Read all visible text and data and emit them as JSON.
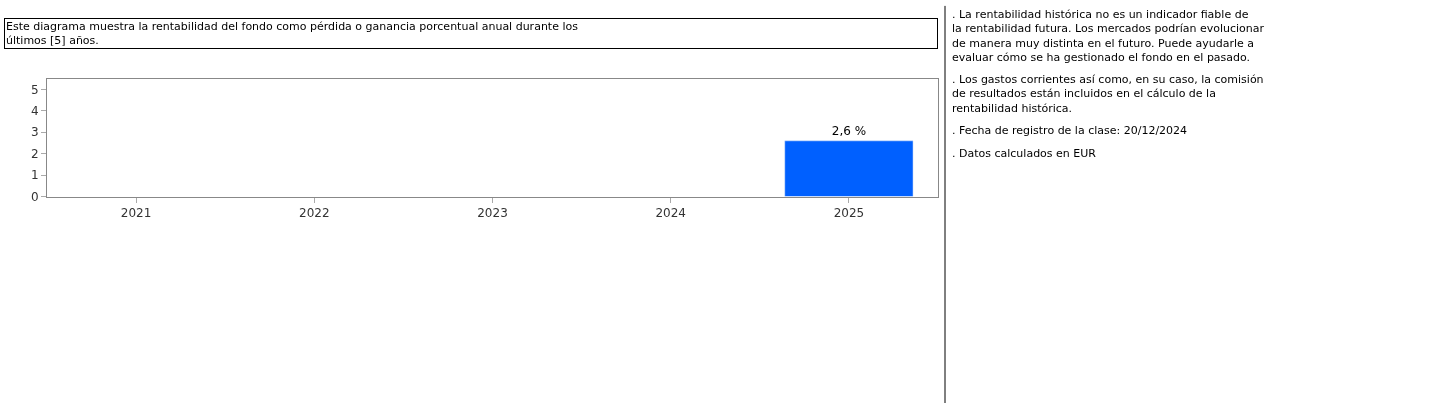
{
  "chart_data": {
    "type": "bar",
    "title": "Este diagrama muestra la rentabilidad del fondo como pérdida o ganancia porcentual anual durante los últimos [5] años.",
    "annotations": [
      ". La rentabilidad histórica no es un indicador fiable de la rentabilidad futura. Los mercados podrían evolucionar de manera muy distinta en el futuro. Puede ayudarle a evaluar cómo se ha gestionado el fondo en el pasado.",
      ". Los gastos corrientes así como, en su caso, la comisión de resultados están incluidos en el cálculo de la rentabilidad histórica.",
      ". Fecha de registro de la clase: 20/12/2024",
      ". Datos calculados en EUR"
    ],
    "categories": [
      "2021",
      "2022",
      "2023",
      "2024",
      "2025"
    ],
    "series": [
      {
        "color": "#0060ff",
        "values": [
          null,
          null,
          null,
          null,
          2.6
        ],
        "value_labels": [
          null,
          null,
          null,
          null,
          "2,6 %"
        ]
      }
    ],
    "ylim": [
      0,
      5.5
    ],
    "yticks": [
      0,
      1,
      2,
      3,
      4,
      5
    ]
  }
}
